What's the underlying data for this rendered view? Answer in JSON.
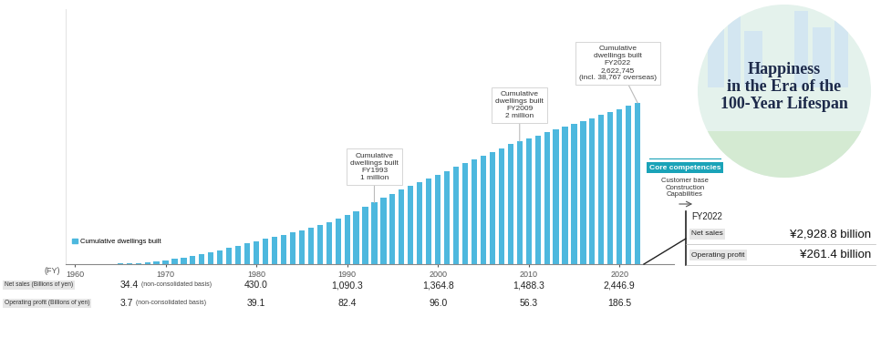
{
  "chart_data": {
    "type": "bar",
    "x_label": "(FY)",
    "x": [
      1965,
      1966,
      1967,
      1968,
      1969,
      1970,
      1971,
      1972,
      1973,
      1974,
      1975,
      1976,
      1977,
      1978,
      1979,
      1980,
      1981,
      1982,
      1983,
      1984,
      1985,
      1986,
      1987,
      1988,
      1989,
      1990,
      1991,
      1992,
      1993,
      1994,
      1995,
      1996,
      1997,
      1998,
      1999,
      2000,
      2001,
      2002,
      2003,
      2004,
      2005,
      2006,
      2007,
      2008,
      2009,
      2010,
      2011,
      2012,
      2013,
      2014,
      2015,
      2016,
      2017,
      2018,
      2019,
      2020,
      2021,
      2022
    ],
    "series": [
      {
        "name": "Cumulative dwellings built",
        "color": "#4db8de",
        "values": [
          10000,
          15000,
          22000,
          32000,
          45000,
          62000,
          82000,
          108000,
          138000,
          165000,
          195000,
          228000,
          262000,
          298000,
          335000,
          372000,
          408000,
          443000,
          478000,
          513000,
          550000,
          590000,
          635000,
          685000,
          740000,
          800000,
          865000,
          940000,
          1015000,
          1078000,
          1142000,
          1208000,
          1272000,
          1334000,
          1396000,
          1458000,
          1519000,
          1580000,
          1641000,
          1702000,
          1763000,
          1825000,
          1888000,
          1950000,
          2005000,
          2050000,
          2095000,
          2142000,
          2190000,
          2236000,
          2282000,
          2328000,
          2375000,
          2425000,
          2475000,
          2523000,
          2573000,
          2622745
        ]
      }
    ],
    "xlim": [
      1959,
      2026
    ],
    "xticks": [
      1960,
      1970,
      1980,
      1990,
      2000,
      2010,
      2020
    ],
    "ylim": [
      0,
      4150000
    ],
    "yticks": [],
    "tick_labels": "x",
    "grid": false,
    "legend": "lower left",
    "annotations": [
      {
        "x": 1993,
        "value": 1000000,
        "title": "Cumulative dwellings built",
        "year": "FY1993",
        "label": "1 million"
      },
      {
        "x": 2009,
        "value": 2000000,
        "title": "Cumulative dwellings built",
        "year": "FY2009",
        "label": "2 million"
      },
      {
        "x": 2022,
        "value": 2622745,
        "title": "Cumulative dwellings built",
        "year": "FY2022",
        "label": "2,622,745",
        "note": "(incl. 38,767 overseas)"
      }
    ],
    "table_rows": [
      {
        "label": "Net sales (Billions of yen)",
        "x": [
          1960,
          1980,
          1990,
          2000,
          2010,
          2020
        ],
        "values": [
          "34.4",
          "430.0",
          "1,090.3",
          "1,364.8",
          "1,488.3",
          "2,446.9"
        ],
        "note": "(non-consolidated basis)",
        "note_x": 1960
      },
      {
        "label": "Operating profit (Billions of yen)",
        "x": [
          1960,
          1980,
          1990,
          2000,
          2010,
          2020
        ],
        "values": [
          "3.7",
          "39.1",
          "82.4",
          "96.0",
          "56.3",
          "186.5"
        ],
        "note": "(non-consolidated basis)",
        "note_x": 1960
      }
    ]
  },
  "core_competencies": {
    "title": "Core competencies",
    "items": [
      "Customer base",
      "Construction Capabilities"
    ]
  },
  "fy2022_summary": {
    "title": "FY2022",
    "items": [
      {
        "label": "Net sales",
        "value_label": "¥2,928.8 billion"
      },
      {
        "label": "Operating profit",
        "value_label": "¥261.4 billion"
      }
    ]
  },
  "tagline": {
    "lines": [
      "Happiness",
      "in the Era of the",
      "100-Year Lifespan"
    ]
  }
}
